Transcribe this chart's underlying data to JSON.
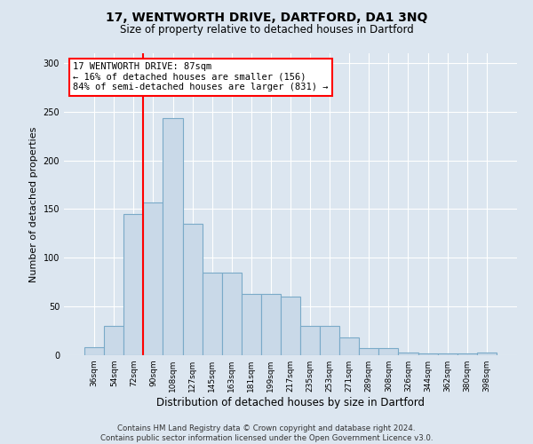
{
  "title": "17, WENTWORTH DRIVE, DARTFORD, DA1 3NQ",
  "subtitle": "Size of property relative to detached houses in Dartford",
  "xlabel": "Distribution of detached houses by size in Dartford",
  "ylabel": "Number of detached properties",
  "categories": [
    "36sqm",
    "54sqm",
    "72sqm",
    "90sqm",
    "108sqm",
    "127sqm",
    "145sqm",
    "163sqm",
    "181sqm",
    "199sqm",
    "217sqm",
    "235sqm",
    "253sqm",
    "271sqm",
    "289sqm",
    "308sqm",
    "326sqm",
    "344sqm",
    "362sqm",
    "380sqm",
    "398sqm"
  ],
  "values": [
    8,
    30,
    145,
    157,
    243,
    135,
    85,
    85,
    63,
    63,
    60,
    30,
    30,
    18,
    7,
    7,
    3,
    2,
    2,
    2,
    3
  ],
  "bar_color": "#c9d9e8",
  "bar_edge_color": "#7aaac8",
  "vline_x_index": 2.5,
  "annotation_text": "17 WENTWORTH DRIVE: 87sqm\n← 16% of detached houses are smaller (156)\n84% of semi-detached houses are larger (831) →",
  "annotation_box_color": "white",
  "annotation_box_edge": "red",
  "vline_color": "red",
  "background_color": "#dce6f0",
  "footer": "Contains HM Land Registry data © Crown copyright and database right 2024.\nContains public sector information licensed under the Open Government Licence v3.0.",
  "ylim": [
    0,
    310
  ],
  "title_fontsize": 10,
  "subtitle_fontsize": 8.5,
  "xlabel_fontsize": 8.5,
  "ylabel_fontsize": 8
}
